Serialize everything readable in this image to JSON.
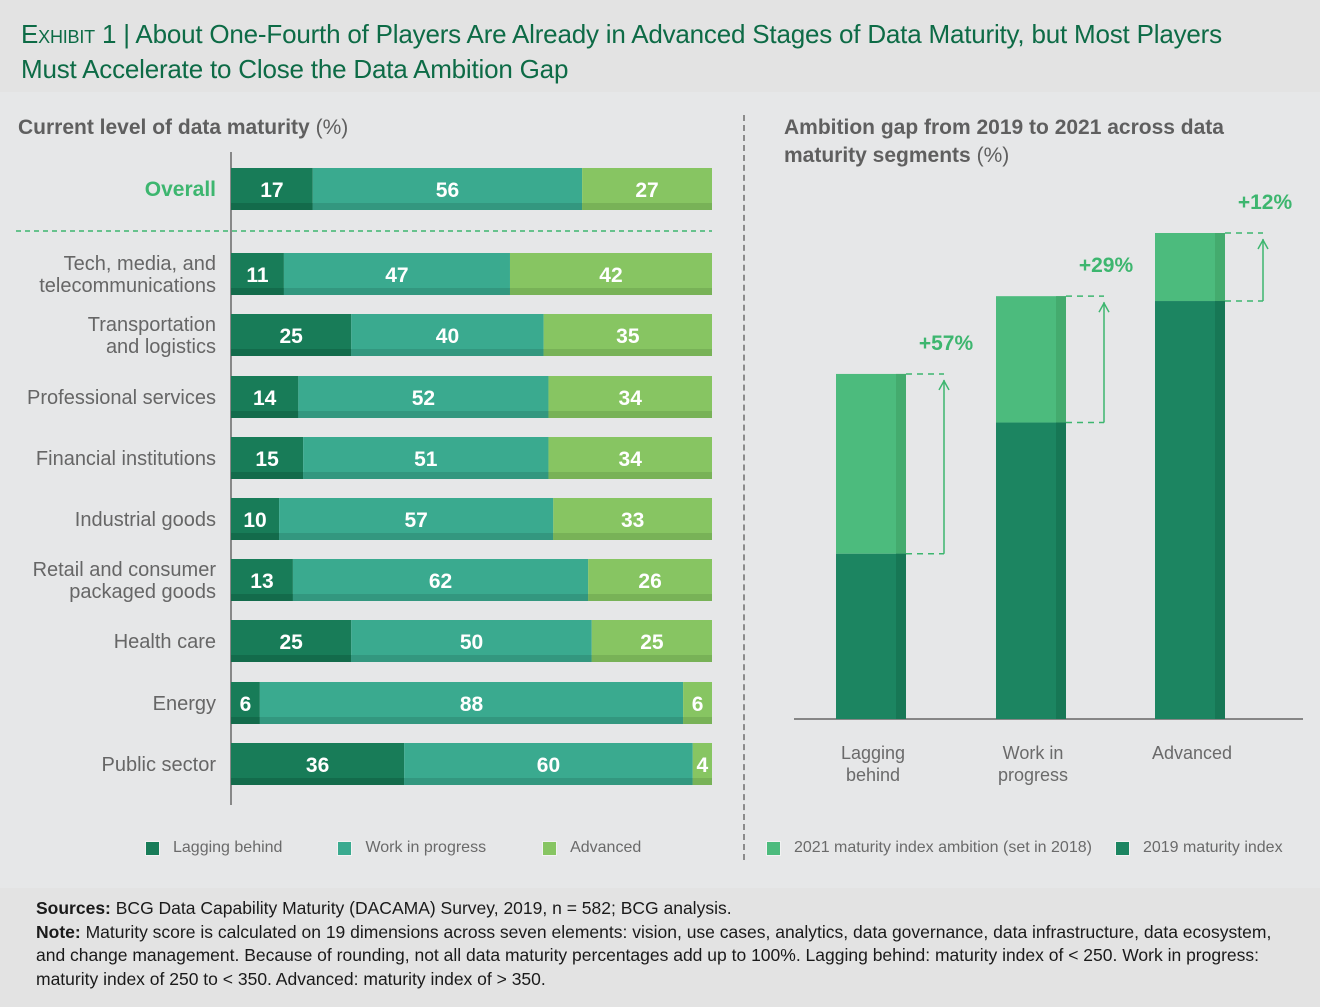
{
  "header": {
    "exhibit_label": "Exhibit 1",
    "separator": "|",
    "title": "About One-Fourth of Players Are Already in Advanced Stages of Data Maturity, but Most Players Must Accelerate to Close the Data Ambition Gap"
  },
  "colors": {
    "lagging": "#187c58",
    "work_in_progress": "#3aaa8f",
    "advanced": "#87c562",
    "ambition_2021": "#4cbb7d",
    "index_2019": "#1c8561",
    "title_green": "#0d6b46",
    "highlight_green": "#3db66f"
  },
  "chart_data": [
    {
      "type": "bar",
      "orientation": "horizontal",
      "stacked": true,
      "title": "Current level of data maturity",
      "title_unit": "(%)",
      "categories": [
        "Overall",
        "Tech, media, and telecommunications",
        "Transportation and logistics",
        "Professional services",
        "Financial institutions",
        "Industrial goods",
        "Retail and consumer packaged goods",
        "Health care",
        "Energy",
        "Public sector"
      ],
      "category_lines": [
        [
          "Overall"
        ],
        [
          "Tech, media, and",
          "telecommunications"
        ],
        [
          "Transportation",
          "and logistics"
        ],
        [
          "Professional services"
        ],
        [
          "Financial institutions"
        ],
        [
          "Industrial goods"
        ],
        [
          "Retail and consumer",
          "packaged goods"
        ],
        [
          "Health care"
        ],
        [
          "Energy"
        ],
        [
          "Public sector"
        ]
      ],
      "series": [
        {
          "name": "Lagging behind",
          "values": [
            17,
            11,
            25,
            14,
            15,
            10,
            13,
            25,
            6,
            36
          ]
        },
        {
          "name": "Work in progress",
          "values": [
            56,
            47,
            40,
            52,
            51,
            57,
            62,
            50,
            88,
            60
          ]
        },
        {
          "name": "Advanced",
          "values": [
            27,
            42,
            35,
            34,
            34,
            33,
            26,
            25,
            6,
            4
          ]
        }
      ],
      "xlim": [
        0,
        100
      ],
      "legend": [
        "Lagging behind",
        "Work in progress",
        "Advanced"
      ],
      "legend_position": "bottom"
    },
    {
      "type": "bar",
      "orientation": "vertical",
      "title": "Ambition gap from 2019 to 2021 across data maturity segments",
      "title_unit": "(%)",
      "categories": [
        "Lagging behind",
        "Work in progress",
        "Advanced"
      ],
      "category_lines": [
        [
          "Lagging",
          "behind"
        ],
        [
          "Work in",
          "progress"
        ],
        [
          "Advanced"
        ]
      ],
      "series": [
        {
          "name": "2019 maturity index",
          "values_relative": [
            34,
            61,
            86
          ]
        },
        {
          "name": "2021 maturity index ambition (set in 2018)",
          "values_relative": [
            71,
            87,
            100
          ]
        }
      ],
      "gap_labels": [
        "+57%",
        "+29%",
        "+12%"
      ],
      "axis_values_shown": false,
      "legend": [
        "2021 maturity index ambition (set in 2018)",
        "2019 maturity index"
      ],
      "legend_position": "bottom"
    }
  ],
  "footer": {
    "sources_label": "Sources:",
    "sources_text": " BCG Data Capability Maturity (DACAMA) Survey, 2019, n = 582; BCG analysis.",
    "note_label": "Note:",
    "note_text": " Maturity score is calculated on 19 dimensions across seven elements: vision, use cases, analytics, data governance, data infrastructure, data ecosystem, and change management. Because of rounding, not all data maturity percentages add up to 100%. Lagging behind: maturity index of < 250. Work in progress: maturity index of 250 to < 350. Advanced: maturity index of > 350."
  }
}
